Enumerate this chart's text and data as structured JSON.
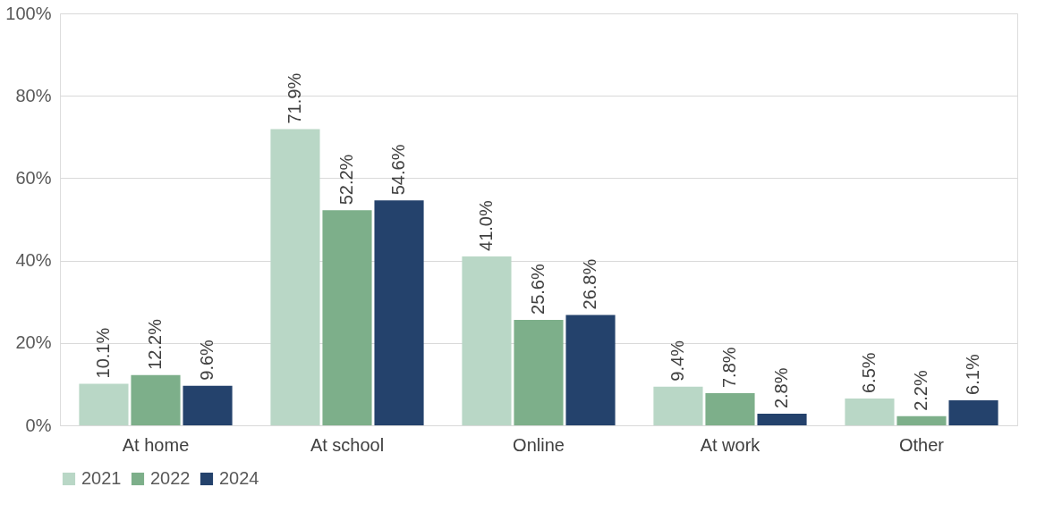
{
  "chart_data": {
    "type": "bar",
    "categories": [
      "At home",
      "At school",
      "Online",
      "At work",
      "Other"
    ],
    "series": [
      {
        "name": "2021",
        "color": "#b9d7c6",
        "values": [
          10.1,
          71.9,
          41.0,
          9.4,
          6.5
        ],
        "value_labels": [
          "10.1%",
          "71.9%",
          "41.0%",
          "9.4%",
          "6.5%"
        ]
      },
      {
        "name": "2022",
        "color": "#7daf8a",
        "values": [
          12.2,
          52.2,
          25.6,
          7.8,
          2.2
        ],
        "value_labels": [
          "12.2%",
          "52.2%",
          "25.6%",
          "7.8%",
          "2.2%"
        ]
      },
      {
        "name": "2024",
        "color": "#24426c",
        "values": [
          9.6,
          54.6,
          26.8,
          2.8,
          6.1
        ],
        "value_labels": [
          "9.6%",
          "54.6%",
          "26.8%",
          "2.8%",
          "6.1%"
        ]
      }
    ],
    "ylim": [
      0,
      100
    ],
    "yticks": [
      {
        "value": 0,
        "label": "0%"
      },
      {
        "value": 20,
        "label": "20%"
      },
      {
        "value": 40,
        "label": "40%"
      },
      {
        "value": 60,
        "label": "60%"
      },
      {
        "value": 80,
        "label": "80%"
      },
      {
        "value": 100,
        "label": "100%"
      }
    ],
    "grid": "y",
    "legend": "bottom"
  }
}
